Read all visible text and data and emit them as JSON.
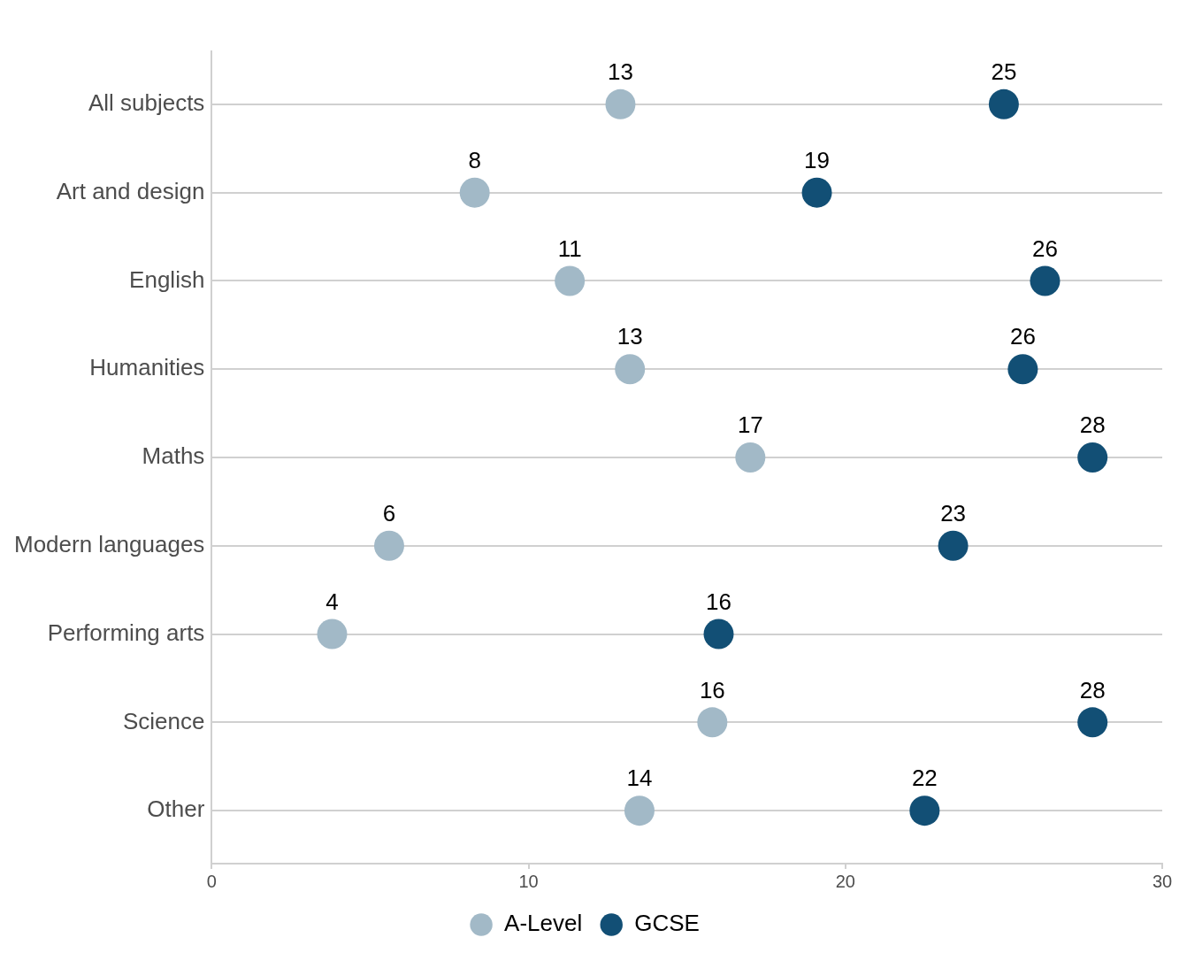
{
  "chart_data": {
    "type": "scatter",
    "orientation": "horizontal",
    "categories": [
      "All subjects",
      "Art and design",
      "English",
      "Humanities",
      "Maths",
      "Modern languages",
      "Performing arts",
      "Science",
      "Other"
    ],
    "series": [
      {
        "name": "A-Level",
        "color": "#a2b9c7",
        "values": [
          12.9,
          8.3,
          11.3,
          13.2,
          17.0,
          5.6,
          3.8,
          15.8,
          13.5
        ],
        "value_labels": [
          "13",
          "8",
          "11",
          "13",
          "17",
          "6",
          "4",
          "16",
          "14"
        ]
      },
      {
        "name": "GCSE",
        "color": "#124f75",
        "values": [
          25.0,
          19.1,
          26.3,
          25.6,
          27.8,
          23.4,
          16.0,
          27.8,
          22.5
        ],
        "value_labels": [
          "25",
          "19",
          "26",
          "26",
          "28",
          "23",
          "16",
          "28",
          "22"
        ]
      }
    ],
    "xlim": [
      0,
      30
    ],
    "xticks": [
      0,
      10,
      20,
      30
    ],
    "grid": "y",
    "legend": "bottom",
    "marker": "circle"
  }
}
